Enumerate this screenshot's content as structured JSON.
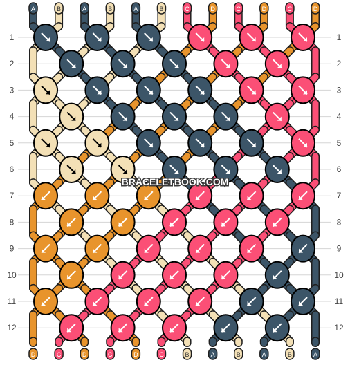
{
  "colors": {
    "A": "#3c5568",
    "B": "#f3e0b6",
    "C": "#fb4f76",
    "D": "#e8942c",
    "grid": "#d5d5d5",
    "label": "#444444",
    "outline": "#000000",
    "arrow": "#ffffff"
  },
  "watermark": "BRACELETBOOK.COM",
  "top_strings": [
    "A",
    "B",
    "A",
    "B",
    "A",
    "B",
    "C",
    "D",
    "C",
    "D",
    "C",
    "D"
  ],
  "bottom_strings": [
    "D",
    "C",
    "D",
    "C",
    "D",
    "C",
    "B",
    "A",
    "B",
    "A",
    "B",
    "A"
  ],
  "rows": [
    {
      "label": "1",
      "knots": [
        {
          "c": "A",
          "d": "se"
        },
        {
          "c": "A",
          "d": "se"
        },
        {
          "c": "A",
          "d": "se"
        },
        {
          "c": "C",
          "d": "se"
        },
        {
          "c": "C",
          "d": "se"
        },
        {
          "c": "C",
          "d": "se"
        }
      ]
    },
    {
      "label": "2",
      "knots": [
        {
          "c": "A",
          "d": "se"
        },
        {
          "c": "A",
          "d": "se"
        },
        {
          "c": "A",
          "d": "se"
        },
        {
          "c": "C",
          "d": "se"
        },
        {
          "c": "C",
          "d": "se"
        }
      ]
    },
    {
      "label": "3",
      "knots": [
        {
          "c": "B",
          "d": "se"
        },
        {
          "c": "A",
          "d": "se"
        },
        {
          "c": "A",
          "d": "se"
        },
        {
          "c": "A",
          "d": "se"
        },
        {
          "c": "C",
          "d": "se"
        },
        {
          "c": "C",
          "d": "se"
        }
      ]
    },
    {
      "label": "4",
      "knots": [
        {
          "c": "B",
          "d": "se"
        },
        {
          "c": "A",
          "d": "se"
        },
        {
          "c": "A",
          "d": "se"
        },
        {
          "c": "A",
          "d": "se"
        },
        {
          "c": "C",
          "d": "se"
        }
      ]
    },
    {
      "label": "5",
      "knots": [
        {
          "c": "B",
          "d": "se"
        },
        {
          "c": "B",
          "d": "se"
        },
        {
          "c": "A",
          "d": "se"
        },
        {
          "c": "A",
          "d": "se"
        },
        {
          "c": "A",
          "d": "se"
        },
        {
          "c": "C",
          "d": "se"
        }
      ]
    },
    {
      "label": "6",
      "knots": [
        {
          "c": "B",
          "d": "se"
        },
        {
          "c": "B",
          "d": "se"
        },
        {
          "c": "A",
          "d": "se"
        },
        {
          "c": "A",
          "d": "se"
        },
        {
          "c": "A",
          "d": "se"
        }
      ]
    },
    {
      "label": "7",
      "knots": [
        {
          "c": "D",
          "d": "sw"
        },
        {
          "c": "D",
          "d": "sw"
        },
        {
          "c": "D",
          "d": "sw"
        },
        {
          "c": "C",
          "d": "sw"
        },
        {
          "c": "C",
          "d": "sw"
        },
        {
          "c": "C",
          "d": "sw"
        }
      ]
    },
    {
      "label": "8",
      "knots": [
        {
          "c": "D",
          "d": "sw"
        },
        {
          "c": "D",
          "d": "sw"
        },
        {
          "c": "C",
          "d": "sw"
        },
        {
          "c": "C",
          "d": "sw"
        },
        {
          "c": "C",
          "d": "sw"
        }
      ]
    },
    {
      "label": "9",
      "knots": [
        {
          "c": "D",
          "d": "sw"
        },
        {
          "c": "D",
          "d": "sw"
        },
        {
          "c": "C",
          "d": "sw"
        },
        {
          "c": "C",
          "d": "sw"
        },
        {
          "c": "C",
          "d": "sw"
        },
        {
          "c": "A",
          "d": "sw"
        }
      ]
    },
    {
      "label": "10",
      "knots": [
        {
          "c": "D",
          "d": "sw"
        },
        {
          "c": "C",
          "d": "sw"
        },
        {
          "c": "C",
          "d": "sw"
        },
        {
          "c": "C",
          "d": "sw"
        },
        {
          "c": "A",
          "d": "sw"
        }
      ]
    },
    {
      "label": "11",
      "knots": [
        {
          "c": "D",
          "d": "sw"
        },
        {
          "c": "C",
          "d": "sw"
        },
        {
          "c": "C",
          "d": "sw"
        },
        {
          "c": "C",
          "d": "sw"
        },
        {
          "c": "A",
          "d": "sw"
        },
        {
          "c": "A",
          "d": "sw"
        }
      ]
    },
    {
      "label": "12",
      "knots": [
        {
          "c": "C",
          "d": "sw"
        },
        {
          "c": "C",
          "d": "sw"
        },
        {
          "c": "C",
          "d": "sw"
        },
        {
          "c": "A",
          "d": "sw"
        },
        {
          "c": "A",
          "d": "sw"
        }
      ]
    }
  ]
}
